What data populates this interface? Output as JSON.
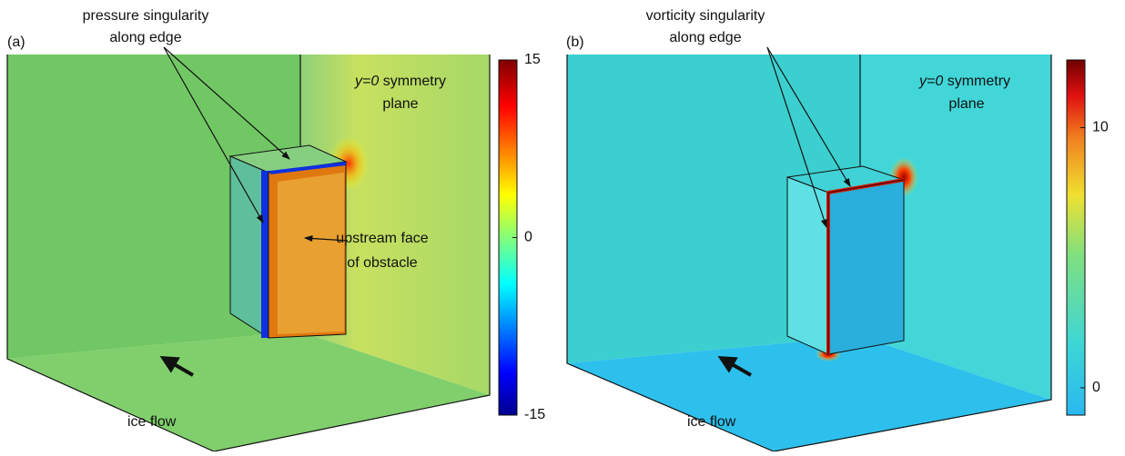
{
  "panels": [
    {
      "label": "(a)",
      "callout": [
        "pressure singularity",
        "along edge"
      ],
      "plane_label": {
        "italic": "y=0",
        "rest": "symmetry",
        "line2": "plane"
      },
      "face_label": [
        "upstream face",
        "of obstacle"
      ],
      "flow_label": "ice flow",
      "colorbar": {
        "range": [
          -15,
          15
        ],
        "ticks": [
          15,
          0,
          -15
        ]
      }
    },
    {
      "label": "(b)",
      "callout": [
        "vorticity singularity",
        "along edge"
      ],
      "plane_label": {
        "italic": "y=0",
        "rest": "symmetry",
        "line2": "plane"
      },
      "flow_label": "ice flow",
      "colorbar": {
        "range": [
          -1.05,
          12.6
        ],
        "ticks": [
          10,
          0
        ]
      }
    }
  ]
}
